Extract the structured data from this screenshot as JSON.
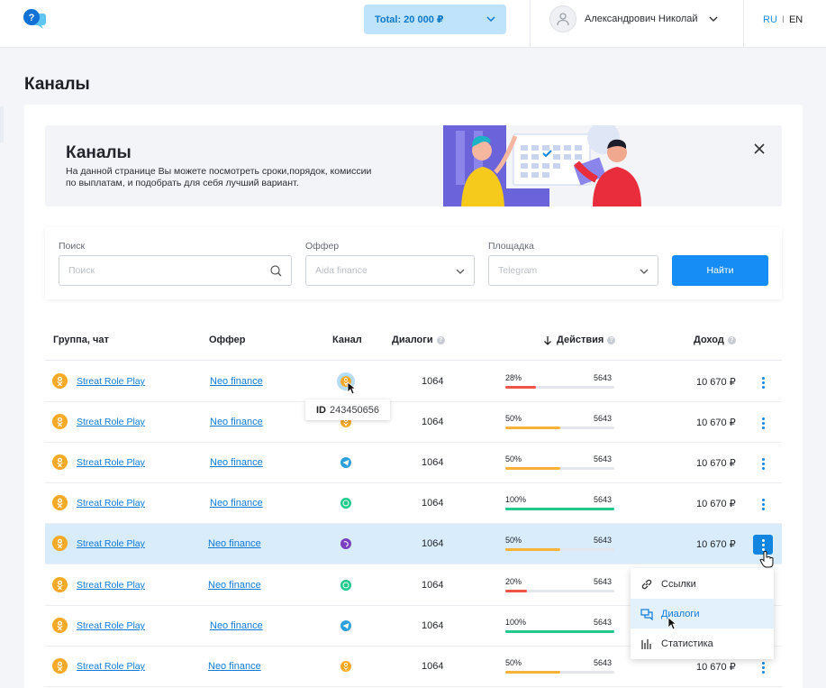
{
  "header": {
    "total_label": "Total: 20 000 ₽",
    "user_name": "Александрович Николай",
    "lang_ru": "RU",
    "lang_sep": "I",
    "lang_en": "EN"
  },
  "page": {
    "title": "Каналы"
  },
  "banner": {
    "title": "Каналы",
    "text": "На данной странице Вы можете посмотреть сроки,порядок, комиссии по выплатам, и подобрать для себя лучший вариант."
  },
  "filters": {
    "search_label": "Поиск",
    "search_placeholder": "Поиск",
    "offer_label": "Оффер",
    "offer_value": "Aida finance",
    "platform_label": "Площадка",
    "platform_value": "Telegram",
    "find_button": "Найти"
  },
  "table": {
    "headers": {
      "group": "Группа, чат",
      "offer": "Оффер",
      "channel": "Канал",
      "dialogs": "Диалоги",
      "actions": "Действия",
      "income": "Доход"
    },
    "rows": [
      {
        "group": "Streat Role Play",
        "offer": "Neo finance",
        "channel": "odnoklassniki",
        "dialogs": "1064",
        "percent": "28%",
        "percent_value": 28,
        "actions": "5643",
        "income": "10 670 ₽",
        "bar_color": "#f0554a"
      },
      {
        "group": "Streat Role Play",
        "offer": "Neo finance",
        "channel": "odnoklassniki",
        "dialogs": "1064",
        "percent": "50%",
        "percent_value": 50,
        "actions": "5643",
        "income": "10 670 ₽",
        "bar_color": "#f7b23b"
      },
      {
        "group": "Streat Role Play",
        "offer": "Neo finance",
        "channel": "telegram",
        "dialogs": "1064",
        "percent": "50%",
        "percent_value": 50,
        "actions": "5643",
        "income": "10 670 ₽",
        "bar_color": "#f7b23b"
      },
      {
        "group": "Streat Role Play",
        "offer": "Neo finance",
        "channel": "whatsapp",
        "dialogs": "1064",
        "percent": "100%",
        "percent_value": 100,
        "actions": "5643",
        "income": "10 670 ₽",
        "bar_color": "#21c98b"
      },
      {
        "group": "Streat Role Play",
        "offer": "Neo finance",
        "channel": "viber",
        "dialogs": "1064",
        "percent": "50%",
        "percent_value": 50,
        "actions": "5643",
        "income": "10 670 ₽",
        "bar_color": "#f7b23b"
      },
      {
        "group": "Streat Role Play",
        "offer": "Neo finance",
        "channel": "whatsapp",
        "dialogs": "1064",
        "percent": "20%",
        "percent_value": 20,
        "actions": "5643",
        "income": "",
        "bar_color": "#f0554a"
      },
      {
        "group": "Streat Role Play",
        "offer": "Neo finance",
        "channel": "telegram",
        "dialogs": "1064",
        "percent": "100%",
        "percent_value": 100,
        "actions": "5643",
        "income": "",
        "bar_color": "#21c98b"
      },
      {
        "group": "Streat Role Play",
        "offer": "Neo finance",
        "channel": "odnoklassniki",
        "dialogs": "1064",
        "percent": "50%",
        "percent_value": 50,
        "actions": "5643",
        "income": "10 670 ₽",
        "bar_color": "#f7b23b"
      }
    ]
  },
  "tooltip": {
    "id_label": "ID",
    "id_value": "243450656"
  },
  "context_menu": {
    "items": [
      {
        "label": "Ссылки",
        "icon": "link-icon"
      },
      {
        "label": "Диалоги",
        "icon": "chat-icon"
      },
      {
        "label": "Статистика",
        "icon": "bar-chart-icon"
      }
    ]
  }
}
